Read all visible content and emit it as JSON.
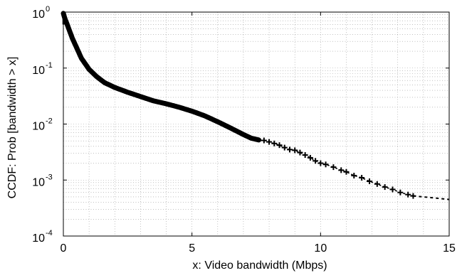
{
  "chart_data": {
    "type": "scatter",
    "title": "",
    "xlabel": "x: Video bandwidth (Mbps)",
    "ylabel": "CCDF: Prob [bandwidth > x]",
    "xlim": [
      0,
      15
    ],
    "ylim": [
      0.0001,
      1
    ],
    "yscale": "log",
    "grid": true,
    "xticks": [
      {
        "value": 0,
        "label": "0"
      },
      {
        "value": 5,
        "label": "5"
      },
      {
        "value": 10,
        "label": "10"
      },
      {
        "value": 15,
        "label": "15"
      }
    ],
    "yticks": [
      {
        "value": 1,
        "base": "10",
        "exp": "0"
      },
      {
        "value": 0.1,
        "base": "10",
        "exp": "-1"
      },
      {
        "value": 0.01,
        "base": "10",
        "exp": "-2"
      },
      {
        "value": 0.001,
        "base": "10",
        "exp": "-3"
      },
      {
        "value": 0.0001,
        "base": "10",
        "exp": "-4"
      }
    ],
    "series": [
      {
        "marker": "+",
        "color": "#000000",
        "dense_curve": [
          [
            0.0,
            0.95
          ],
          [
            0.03,
            0.85
          ],
          [
            0.08,
            0.72
          ],
          [
            0.15,
            0.6
          ],
          [
            0.25,
            0.45
          ],
          [
            0.35,
            0.34
          ],
          [
            0.5,
            0.24
          ],
          [
            0.7,
            0.15
          ],
          [
            1.0,
            0.095
          ],
          [
            1.3,
            0.07
          ],
          [
            1.6,
            0.055
          ],
          [
            2.0,
            0.045
          ],
          [
            2.5,
            0.037
          ],
          [
            3.0,
            0.031
          ],
          [
            3.5,
            0.026
          ],
          [
            4.0,
            0.023
          ],
          [
            4.5,
            0.02
          ],
          [
            5.0,
            0.017
          ],
          [
            5.5,
            0.014
          ],
          [
            6.0,
            0.011
          ],
          [
            6.5,
            0.0085
          ],
          [
            7.0,
            0.0065
          ],
          [
            7.3,
            0.0056
          ],
          [
            7.6,
            0.0052
          ]
        ],
        "points": [
          [
            7.8,
            0.0051
          ],
          [
            8.0,
            0.0048
          ],
          [
            8.2,
            0.0045
          ],
          [
            8.4,
            0.0042
          ],
          [
            8.6,
            0.0038
          ],
          [
            8.8,
            0.0035
          ],
          [
            9.0,
            0.0034
          ],
          [
            9.2,
            0.0031
          ],
          [
            9.4,
            0.0028
          ],
          [
            9.6,
            0.0025
          ],
          [
            9.8,
            0.0022
          ],
          [
            10.0,
            0.002
          ],
          [
            10.2,
            0.0019
          ],
          [
            10.5,
            0.0017
          ],
          [
            10.8,
            0.0015
          ],
          [
            11.0,
            0.0014
          ],
          [
            11.3,
            0.0012
          ],
          [
            11.6,
            0.0011
          ],
          [
            11.9,
            0.00095
          ],
          [
            12.2,
            0.00085
          ],
          [
            12.5,
            0.00075
          ],
          [
            12.8,
            0.00068
          ],
          [
            13.1,
            0.0006
          ],
          [
            13.4,
            0.00055
          ],
          [
            13.6,
            0.00052
          ]
        ],
        "tail": [
          [
            13.6,
            0.00052
          ],
          [
            14.2,
            0.00049
          ],
          [
            15.0,
            0.00045
          ]
        ]
      }
    ]
  }
}
